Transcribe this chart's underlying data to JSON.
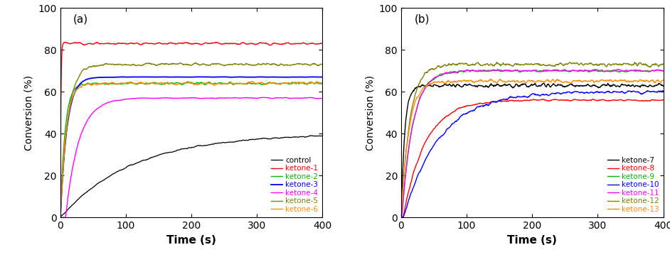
{
  "panel_a": {
    "label": "(a)",
    "series": [
      {
        "name": "control",
        "color": "#000000",
        "lw": 0.9,
        "plateau": 40,
        "rate": 0.009,
        "delay": 0,
        "noise": 0.6,
        "noise_smooth": 15
      },
      {
        "name": "ketone-1",
        "color": "#ff0000",
        "lw": 1.0,
        "plateau": 83,
        "rate": 1.2,
        "delay": 0,
        "noise": 0.8,
        "noise_smooth": 12
      },
      {
        "name": "ketone-2",
        "color": "#00bb00",
        "lw": 1.0,
        "plateau": 64,
        "rate": 0.14,
        "delay": 0,
        "noise": 0.9,
        "noise_smooth": 10
      },
      {
        "name": "ketone-3",
        "color": "#0000ff",
        "lw": 1.3,
        "plateau": 67,
        "rate": 0.1,
        "delay": 0,
        "noise": 0.2,
        "noise_smooth": 20
      },
      {
        "name": "ketone-4",
        "color": "#ff00ff",
        "lw": 1.0,
        "plateau": 57,
        "rate": 0.05,
        "delay": 8,
        "noise": 0.5,
        "noise_smooth": 18
      },
      {
        "name": "ketone-5",
        "color": "#808000",
        "lw": 1.0,
        "plateau": 73,
        "rate": 0.09,
        "delay": 0,
        "noise": 1.0,
        "noise_smooth": 10
      },
      {
        "name": "ketone-6",
        "color": "#ff8c00",
        "lw": 1.0,
        "plateau": 64,
        "rate": 0.12,
        "delay": 0,
        "noise": 1.0,
        "noise_smooth": 10
      }
    ],
    "xlabel": "Time (s)",
    "ylabel": "Conversion (%)",
    "xlim": [
      0,
      400
    ],
    "ylim": [
      0,
      100
    ],
    "xticks": [
      0,
      100,
      200,
      300,
      400
    ],
    "yticks": [
      0,
      20,
      40,
      60,
      80,
      100
    ]
  },
  "panel_b": {
    "label": "(b)",
    "series": [
      {
        "name": "ketone-7",
        "color": "#000000",
        "lw": 1.0,
        "plateau": 63,
        "rate": 0.18,
        "delay": 0,
        "noise": 1.2,
        "noise_smooth": 8
      },
      {
        "name": "ketone-8",
        "color": "#ff0000",
        "lw": 1.0,
        "plateau": 56,
        "rate": 0.03,
        "delay": 3,
        "noise": 0.7,
        "noise_smooth": 12
      },
      {
        "name": "ketone-9",
        "color": "#00bb00",
        "lw": 1.0,
        "plateau": 70,
        "rate": 0.06,
        "delay": 1,
        "noise": 0.9,
        "noise_smooth": 10
      },
      {
        "name": "ketone-10",
        "color": "#0000ff",
        "lw": 1.0,
        "plateau": 60,
        "rate": 0.018,
        "delay": 3,
        "noise": 1.0,
        "noise_smooth": 10
      },
      {
        "name": "ketone-11",
        "color": "#ff00ff",
        "lw": 1.0,
        "plateau": 70,
        "rate": 0.06,
        "delay": 1,
        "noise": 0.7,
        "noise_smooth": 12
      },
      {
        "name": "ketone-12",
        "color": "#808000",
        "lw": 1.0,
        "plateau": 73,
        "rate": 0.075,
        "delay": 0,
        "noise": 1.1,
        "noise_smooth": 8
      },
      {
        "name": "ketone-13",
        "color": "#ff8c00",
        "lw": 1.0,
        "plateau": 65,
        "rate": 0.085,
        "delay": 0,
        "noise": 1.1,
        "noise_smooth": 8
      }
    ],
    "xlabel": "Time (s)",
    "ylabel": "Conversion (%)",
    "xlim": [
      0,
      400
    ],
    "ylim": [
      0,
      100
    ],
    "xticks": [
      0,
      100,
      200,
      300,
      400
    ],
    "yticks": [
      0,
      20,
      40,
      60,
      80,
      100
    ]
  },
  "fig_width": 9.42,
  "fig_height": 3.69,
  "dpi": 100
}
